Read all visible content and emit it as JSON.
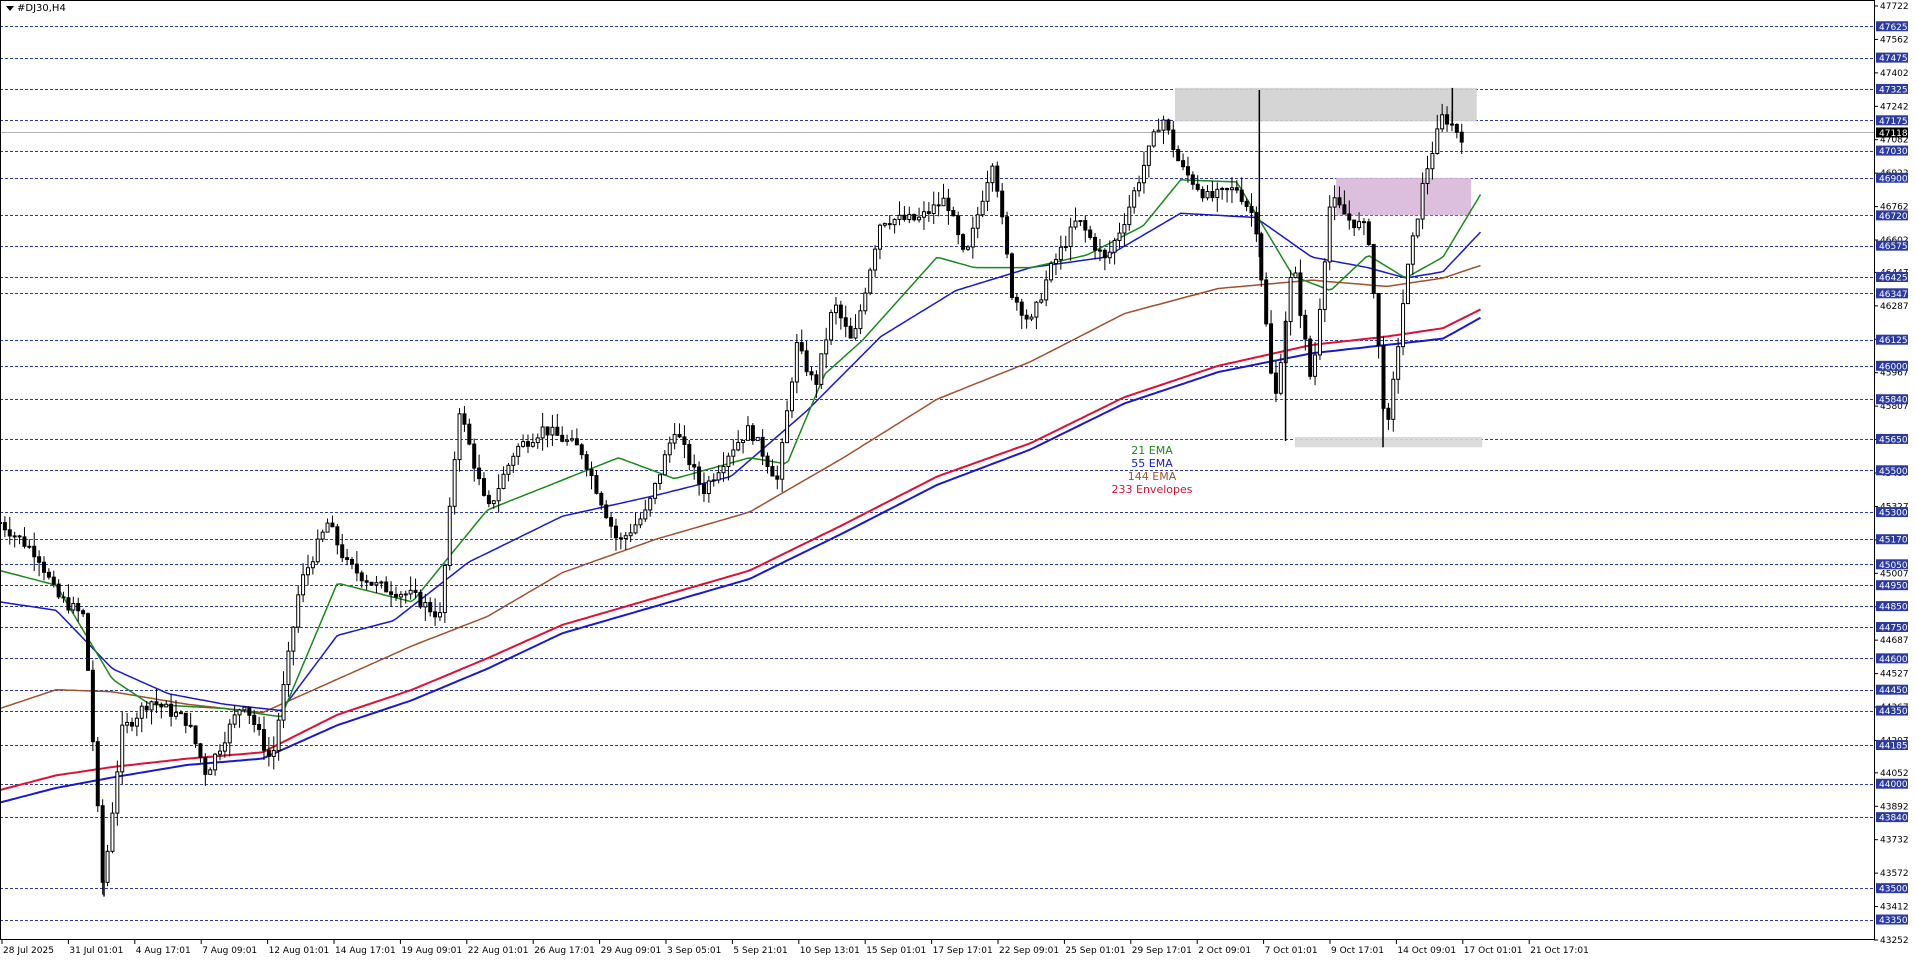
{
  "header": {
    "symbol": "#DJ30,H4"
  },
  "legend": [
    {
      "label": "21 EMA",
      "color": "#1a8a1a"
    },
    {
      "label": "55 EMA",
      "color": "#1a1acc"
    },
    {
      "label": "144 EMA",
      "color": "#a0522d"
    },
    {
      "label": "233 Envelopes",
      "color": "#dd1133"
    }
  ],
  "current_price": "47118",
  "chart_data": {
    "type": "candlestick",
    "title": "",
    "ylim": [
      43252,
      47722
    ],
    "price_ticks": [
      47722,
      47562,
      47402,
      47242,
      47082,
      46922,
      46762,
      46602,
      46447,
      46287,
      46127,
      45967,
      45807,
      45647,
      45487,
      45327,
      45167,
      45007,
      44847,
      44687,
      44527,
      44367,
      44207,
      44052,
      43892,
      43732,
      43572,
      43412,
      43252
    ],
    "levels": [
      47625,
      47475,
      47325,
      47175,
      47030,
      46900,
      46720,
      46575,
      46425,
      46347,
      46125,
      46000,
      45840,
      45650,
      45500,
      45300,
      45170,
      45050,
      44950,
      44850,
      44750,
      44600,
      44450,
      44350,
      44185,
      44000,
      43840,
      43500,
      43350
    ],
    "time_labels": [
      "28 Jul 2025",
      "31 Jul 01:01",
      "4 Aug 17:01",
      "7 Aug 09:01",
      "12 Aug 01:01",
      "14 Aug 17:01",
      "19 Aug 09:01",
      "22 Aug 01:01",
      "26 Aug 17:01",
      "29 Aug 09:01",
      "3 Sep 05:01",
      "5 Sep 21:01",
      "10 Sep 13:01",
      "15 Sep 01:01",
      "17 Sep 17:01",
      "22 Sep 09:01",
      "25 Sep 01:01",
      "29 Sep 17:01",
      "2 Oct 09:01",
      "7 Oct 01:01",
      "9 Oct 17:01",
      "14 Oct 09:01",
      "17 Oct 01:01",
      "21 Oct 17:01"
    ],
    "zones": [
      {
        "name": "resistance-top",
        "from": 47170,
        "to": 47330,
        "color": "#d0d0d0"
      },
      {
        "name": "resistance-mid",
        "from": 46720,
        "to": 46900,
        "color": "#d8b8d8"
      },
      {
        "name": "support-low",
        "from": 45610,
        "to": 45660,
        "color": "#d8d8d8"
      }
    ],
    "ema_anchors": {
      "ema21": [
        [
          0,
          45020
        ],
        [
          0.03,
          44950
        ],
        [
          0.06,
          44500
        ],
        [
          0.08,
          44380
        ],
        [
          0.12,
          44360
        ],
        [
          0.15,
          44320
        ],
        [
          0.18,
          44960
        ],
        [
          0.22,
          44870
        ],
        [
          0.26,
          45310
        ],
        [
          0.33,
          45560
        ],
        [
          0.36,
          45460
        ],
        [
          0.4,
          45560
        ],
        [
          0.42,
          45530
        ],
        [
          0.44,
          45960
        ],
        [
          0.46,
          46120
        ],
        [
          0.5,
          46520
        ],
        [
          0.52,
          46470
        ],
        [
          0.55,
          46470
        ],
        [
          0.58,
          46530
        ],
        [
          0.61,
          46670
        ],
        [
          0.63,
          46890
        ],
        [
          0.66,
          46880
        ],
        [
          0.69,
          46430
        ],
        [
          0.71,
          46360
        ],
        [
          0.73,
          46530
        ],
        [
          0.75,
          46420
        ],
        [
          0.77,
          46520
        ],
        [
          0.79,
          46820
        ]
      ],
      "ema55": [
        [
          0,
          44870
        ],
        [
          0.03,
          44830
        ],
        [
          0.06,
          44550
        ],
        [
          0.09,
          44430
        ],
        [
          0.12,
          44380
        ],
        [
          0.15,
          44350
        ],
        [
          0.18,
          44710
        ],
        [
          0.21,
          44780
        ],
        [
          0.25,
          45060
        ],
        [
          0.3,
          45280
        ],
        [
          0.35,
          45380
        ],
        [
          0.39,
          45470
        ],
        [
          0.43,
          45780
        ],
        [
          0.47,
          46140
        ],
        [
          0.51,
          46360
        ],
        [
          0.55,
          46470
        ],
        [
          0.59,
          46520
        ],
        [
          0.63,
          46730
        ],
        [
          0.67,
          46710
        ],
        [
          0.7,
          46520
        ],
        [
          0.73,
          46470
        ],
        [
          0.75,
          46420
        ],
        [
          0.77,
          46450
        ],
        [
          0.79,
          46640
        ]
      ],
      "ema144": [
        [
          0,
          44360
        ],
        [
          0.03,
          44450
        ],
        [
          0.06,
          44440
        ],
        [
          0.1,
          44380
        ],
        [
          0.14,
          44340
        ],
        [
          0.18,
          44500
        ],
        [
          0.22,
          44660
        ],
        [
          0.26,
          44800
        ],
        [
          0.3,
          45010
        ],
        [
          0.35,
          45170
        ],
        [
          0.4,
          45300
        ],
        [
          0.45,
          45560
        ],
        [
          0.5,
          45840
        ],
        [
          0.55,
          46020
        ],
        [
          0.6,
          46250
        ],
        [
          0.65,
          46370
        ],
        [
          0.7,
          46410
        ],
        [
          0.74,
          46380
        ],
        [
          0.77,
          46420
        ],
        [
          0.79,
          46480
        ]
      ],
      "env_upper": [
        [
          0,
          43970
        ],
        [
          0.03,
          44040
        ],
        [
          0.06,
          44080
        ],
        [
          0.1,
          44120
        ],
        [
          0.14,
          44150
        ],
        [
          0.18,
          44330
        ],
        [
          0.22,
          44450
        ],
        [
          0.26,
          44600
        ],
        [
          0.3,
          44760
        ],
        [
          0.35,
          44890
        ],
        [
          0.4,
          45020
        ],
        [
          0.45,
          45240
        ],
        [
          0.5,
          45470
        ],
        [
          0.55,
          45630
        ],
        [
          0.6,
          45850
        ],
        [
          0.65,
          46000
        ],
        [
          0.7,
          46100
        ],
        [
          0.74,
          46140
        ],
        [
          0.77,
          46180
        ],
        [
          0.79,
          46270
        ]
      ],
      "env_lower": [
        [
          0,
          43910
        ],
        [
          0.03,
          43980
        ],
        [
          0.06,
          44030
        ],
        [
          0.1,
          44090
        ],
        [
          0.14,
          44120
        ],
        [
          0.18,
          44280
        ],
        [
          0.22,
          44400
        ],
        [
          0.26,
          44550
        ],
        [
          0.3,
          44720
        ],
        [
          0.35,
          44850
        ],
        [
          0.4,
          44980
        ],
        [
          0.45,
          45200
        ],
        [
          0.5,
          45430
        ],
        [
          0.55,
          45600
        ],
        [
          0.6,
          45820
        ],
        [
          0.65,
          45970
        ],
        [
          0.7,
          46060
        ],
        [
          0.74,
          46100
        ],
        [
          0.77,
          46130
        ],
        [
          0.79,
          46230
        ]
      ]
    },
    "price_anchors": [
      [
        0,
        45250
      ],
      [
        0.02,
        45100
      ],
      [
        0.03,
        44900
      ],
      [
        0.045,
        44800
      ],
      [
        0.055,
        43500
      ],
      [
        0.065,
        44250
      ],
      [
        0.08,
        44400
      ],
      [
        0.1,
        44300
      ],
      [
        0.11,
        44050
      ],
      [
        0.13,
        44400
      ],
      [
        0.145,
        44100
      ],
      [
        0.16,
        44950
      ],
      [
        0.175,
        45250
      ],
      [
        0.185,
        45050
      ],
      [
        0.2,
        44950
      ],
      [
        0.22,
        44900
      ],
      [
        0.235,
        44800
      ],
      [
        0.245,
        45800
      ],
      [
        0.26,
        45300
      ],
      [
        0.275,
        45600
      ],
      [
        0.29,
        45700
      ],
      [
        0.31,
        45600
      ],
      [
        0.33,
        45150
      ],
      [
        0.345,
        45300
      ],
      [
        0.36,
        45700
      ],
      [
        0.375,
        45400
      ],
      [
        0.39,
        45600
      ],
      [
        0.4,
        45700
      ],
      [
        0.415,
        45450
      ],
      [
        0.425,
        46100
      ],
      [
        0.435,
        45900
      ],
      [
        0.445,
        46300
      ],
      [
        0.455,
        46100
      ],
      [
        0.47,
        46700
      ],
      [
        0.49,
        46700
      ],
      [
        0.505,
        46800
      ],
      [
        0.515,
        46500
      ],
      [
        0.53,
        47000
      ],
      [
        0.54,
        46350
      ],
      [
        0.55,
        46200
      ],
      [
        0.56,
        46450
      ],
      [
        0.575,
        46700
      ],
      [
        0.59,
        46500
      ],
      [
        0.6,
        46700
      ],
      [
        0.61,
        46950
      ],
      [
        0.62,
        47200
      ],
      [
        0.63,
        46950
      ],
      [
        0.645,
        46800
      ],
      [
        0.66,
        46850
      ],
      [
        0.67,
        46700
      ],
      [
        0.68,
        45800
      ],
      [
        0.69,
        46500
      ],
      [
        0.7,
        45900
      ],
      [
        0.71,
        46800
      ],
      [
        0.72,
        46700
      ],
      [
        0.73,
        46650
      ],
      [
        0.74,
        45650
      ],
      [
        0.75,
        46400
      ],
      [
        0.76,
        46900
      ],
      [
        0.77,
        47200
      ],
      [
        0.78,
        47100
      ]
    ],
    "price_range_end": 0.78
  }
}
